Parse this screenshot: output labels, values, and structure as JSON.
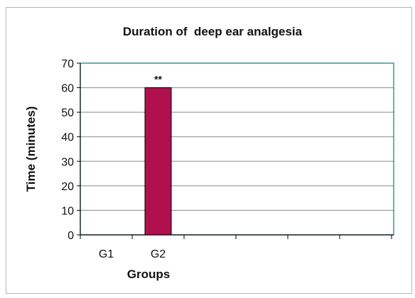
{
  "chart_data": {
    "type": "bar",
    "title": "Duration of  deep ear analgesia",
    "xlabel": "Groups",
    "ylabel": "Time (minutes)",
    "categories": [
      "G1",
      "G2"
    ],
    "values": [
      0,
      60
    ],
    "data_labels": [
      "",
      "**"
    ],
    "ylim": [
      0,
      70
    ],
    "yticks": [
      0,
      10,
      20,
      30,
      40,
      50,
      60,
      70
    ],
    "grid": true,
    "legend": "none",
    "bar_color": "#b0104d",
    "plot_border_color": "#008080"
  }
}
